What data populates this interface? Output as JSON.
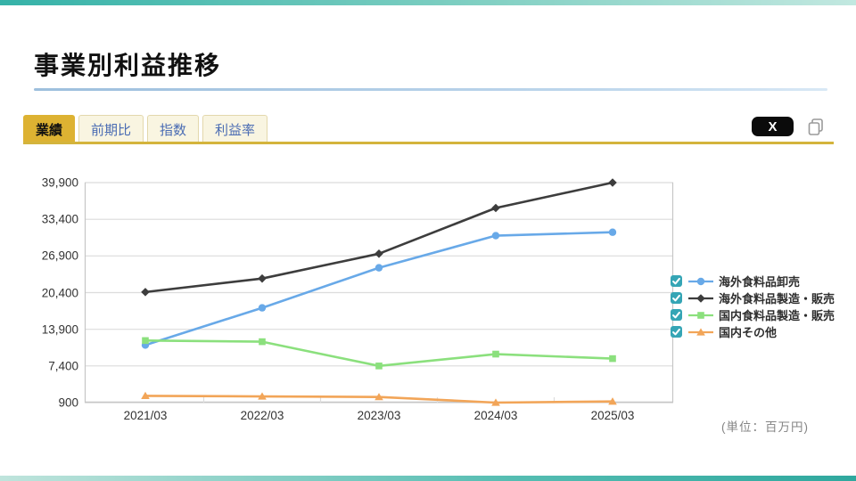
{
  "page": {
    "title": "事業別利益推移"
  },
  "tabs": [
    {
      "label": "業績",
      "active": true
    },
    {
      "label": "前期比",
      "active": false
    },
    {
      "label": "指数",
      "active": false
    },
    {
      "label": "利益率",
      "active": false
    }
  ],
  "toolbar": {
    "x_logo_text": "X",
    "x_share_icon": "x-logo-icon",
    "copy_icon": "copy-icon"
  },
  "colors": {
    "tab_active_bg": "#ddb232",
    "tab_inactive_text": "#4a6cb3",
    "gold_rule": "#d4b43c",
    "blue_rule": "#b0cde6",
    "checkbox_teal": "#35a5b5",
    "grid_line": "#dcdcdc",
    "axis_line": "#c6c6c6"
  },
  "chart_data": {
    "type": "line",
    "title": "事業別利益推移",
    "unit_label": "(単位：百万円)",
    "categories": [
      "2021/03",
      "2022/03",
      "2023/03",
      "2024/03",
      "2025/03"
    ],
    "y_ticks": [
      900,
      7400,
      13900,
      20400,
      26900,
      33400,
      39900
    ],
    "ylim": [
      900,
      39900
    ],
    "grid": true,
    "legend_position": "right",
    "series": [
      {
        "name": "海外食料品卸売",
        "color": "#68a9e8",
        "marker": "circle",
        "checked": true,
        "values": [
          11100,
          17700,
          24800,
          30500,
          31100
        ]
      },
      {
        "name": "海外食料品製造・販売",
        "color": "#3d3d3d",
        "marker": "diamond",
        "checked": true,
        "values": [
          20500,
          22900,
          27300,
          35400,
          39900
        ]
      },
      {
        "name": "国内食料品製造・販売",
        "color": "#8be07d",
        "marker": "square",
        "checked": true,
        "values": [
          11900,
          11700,
          7400,
          9500,
          8700
        ]
      },
      {
        "name": "国内その他",
        "color": "#f2a558",
        "marker": "triangle",
        "checked": true,
        "values": [
          2100,
          2000,
          1900,
          900,
          1100
        ]
      }
    ]
  }
}
